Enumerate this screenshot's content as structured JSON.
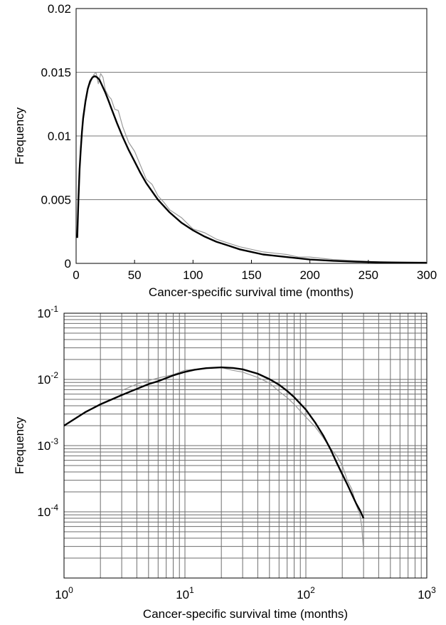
{
  "chart_data": [
    {
      "type": "line",
      "title": "",
      "xlabel": "Cancer-specific survival time (months)",
      "ylabel": "Frequency",
      "xlim": [
        0,
        300
      ],
      "ylim": [
        0,
        0.02
      ],
      "xscale": "linear",
      "yscale": "linear",
      "grid": "horizontal",
      "x_ticks": [
        "0",
        "50",
        "100",
        "150",
        "200",
        "250",
        "300"
      ],
      "y_ticks": [
        "0",
        "0.005",
        "0.01",
        "0.015",
        "0.02"
      ],
      "series": [
        {
          "style": "empirical, noisy thin grey line",
          "color": "#9a9a9a",
          "x": [
            1,
            3,
            5,
            8,
            10,
            12,
            15,
            17,
            19,
            21,
            23,
            25,
            28,
            30,
            33,
            36,
            40,
            45,
            50,
            55,
            60,
            65,
            70,
            75,
            80,
            90,
            100,
            110,
            120,
            130,
            140,
            150,
            160,
            170,
            180,
            190,
            200,
            220,
            240,
            260,
            280,
            300
          ],
          "y": [
            0.0022,
            0.0075,
            0.0105,
            0.0125,
            0.0138,
            0.0141,
            0.0148,
            0.015,
            0.0141,
            0.0149,
            0.0146,
            0.0136,
            0.0131,
            0.0129,
            0.0121,
            0.012,
            0.0107,
            0.0095,
            0.0088,
            0.0077,
            0.0066,
            0.0062,
            0.0053,
            0.0048,
            0.0042,
            0.0036,
            0.0027,
            0.0024,
            0.0019,
            0.0016,
            0.0013,
            0.0011,
            0.0009,
            0.0008,
            0.0007,
            0.0005,
            0.0005,
            0.0003,
            0.0002,
            0.0001,
            0.0001,
            0.0001
          ]
        },
        {
          "style": "fitted, smooth thick black line",
          "color": "#000000",
          "x": [
            1,
            2,
            3,
            4,
            5,
            6,
            8,
            10,
            12,
            14,
            16,
            18,
            20,
            22,
            25,
            28,
            30,
            35,
            40,
            45,
            50,
            55,
            60,
            70,
            80,
            90,
            100,
            110,
            120,
            130,
            140,
            150,
            160,
            170,
            180,
            190,
            200,
            220,
            240,
            260,
            280,
            300
          ],
          "y": [
            0.002,
            0.0051,
            0.0074,
            0.009,
            0.0103,
            0.0114,
            0.0127,
            0.0137,
            0.0143,
            0.0146,
            0.0147,
            0.0146,
            0.0144,
            0.014,
            0.0134,
            0.0127,
            0.0122,
            0.011,
            0.0099,
            0.0089,
            0.008,
            0.0071,
            0.0063,
            0.005,
            0.004,
            0.0032,
            0.0026,
            0.0021,
            0.0017,
            0.0014,
            0.0011,
            0.0009,
            0.0007,
            0.0006,
            0.0005,
            0.0004,
            0.0003,
            0.0002,
            0.00013,
            9e-05,
            6e-05,
            4e-05
          ]
        }
      ]
    },
    {
      "type": "line",
      "title": "",
      "xlabel": "Cancer-specific survival time (months)",
      "ylabel": "Frequency",
      "xlim": [
        1,
        1000
      ],
      "ylim": [
        1e-05,
        0.1
      ],
      "xscale": "log",
      "yscale": "log",
      "grid": "both (major and minor)",
      "x_ticks": [
        {
          "base": "10",
          "exp": "0"
        },
        {
          "base": "10",
          "exp": "1"
        },
        {
          "base": "10",
          "exp": "2"
        },
        {
          "base": "10",
          "exp": "3"
        }
      ],
      "y_ticks": [
        {
          "base": "10",
          "exp": "-4"
        },
        {
          "base": "10",
          "exp": "-3"
        },
        {
          "base": "10",
          "exp": "-2"
        },
        {
          "base": "10",
          "exp": "-1"
        }
      ],
      "series": [
        {
          "style": "empirical, noisy thin grey line",
          "color": "#9a9a9a",
          "x": [
            3,
            4,
            5,
            6,
            8,
            10,
            12,
            15,
            20,
            25,
            30,
            40,
            50,
            60,
            70,
            80,
            100,
            120,
            140,
            160,
            180,
            200,
            220,
            240,
            260,
            280,
            290,
            300
          ],
          "y": [
            0.0068,
            0.0085,
            0.0096,
            0.0105,
            0.0118,
            0.0138,
            0.0141,
            0.0148,
            0.0151,
            0.0137,
            0.0129,
            0.0107,
            0.0088,
            0.0066,
            0.0053,
            0.0042,
            0.0027,
            0.0019,
            0.0013,
            0.0009,
            0.0007,
            0.0005,
            0.0003,
            0.00022,
            0.00013,
            9e-05,
            6e-05,
            2.5e-05
          ]
        },
        {
          "style": "fitted, smooth thick black line",
          "color": "#000000",
          "x": [
            1,
            1.5,
            2,
            3,
            4,
            5,
            6,
            8,
            10,
            12,
            15,
            20,
            25,
            30,
            40,
            50,
            60,
            70,
            80,
            100,
            120,
            140,
            160,
            180,
            200,
            220,
            240,
            260,
            280,
            300
          ],
          "y": [
            0.002,
            0.0032,
            0.0042,
            0.0058,
            0.0072,
            0.0085,
            0.0094,
            0.0115,
            0.013,
            0.014,
            0.0148,
            0.0152,
            0.0149,
            0.0142,
            0.0122,
            0.0101,
            0.0083,
            0.0067,
            0.0054,
            0.0035,
            0.0022,
            0.0014,
            0.00088,
            0.00055,
            0.00037,
            0.00026,
            0.000185,
            0.000135,
            0.000105,
            8e-05
          ]
        }
      ]
    }
  ]
}
